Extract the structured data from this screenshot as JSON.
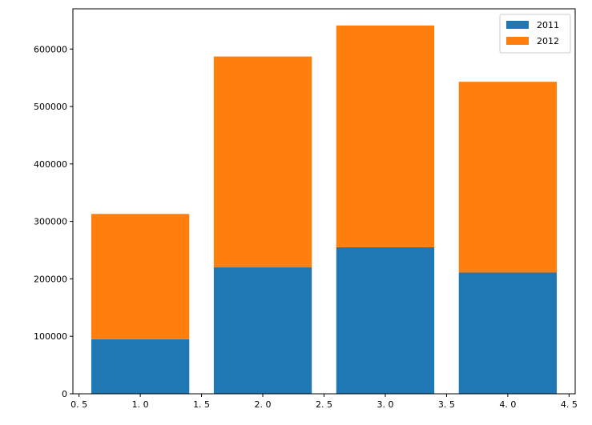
{
  "chart_data": {
    "type": "bar",
    "stacked": true,
    "x": [
      1.0,
      2.0,
      3.0,
      4.0
    ],
    "bar_width": 0.8,
    "series": [
      {
        "name": "2011",
        "values": [
          95000,
          220000,
          255000,
          211000
        ],
        "color": "#1f77b4"
      },
      {
        "name": "2012",
        "values": [
          218000,
          367000,
          386000,
          332000
        ],
        "color": "#ff7f0e"
      }
    ],
    "xlim": [
      0.45,
      4.55
    ],
    "ylim": [
      0,
      670000
    ],
    "xticks": [
      0.5,
      1.0,
      1.5,
      2.0,
      2.5,
      3.0,
      3.5,
      4.0,
      4.5
    ],
    "xtick_labels": [
      "0. 5",
      "1. 0",
      "1. 5",
      "2. 0",
      "2. 5",
      "3. 0",
      "3. 5",
      "4. 0",
      "4. 5"
    ],
    "yticks": [
      0,
      100000,
      200000,
      300000,
      400000,
      500000,
      600000
    ],
    "ytick_labels": [
      "0",
      "100000",
      "200000",
      "300000",
      "400000",
      "500000",
      "600000"
    ],
    "title": "",
    "xlabel": "",
    "ylabel": "",
    "grid": false,
    "legend_position": "upper right"
  }
}
